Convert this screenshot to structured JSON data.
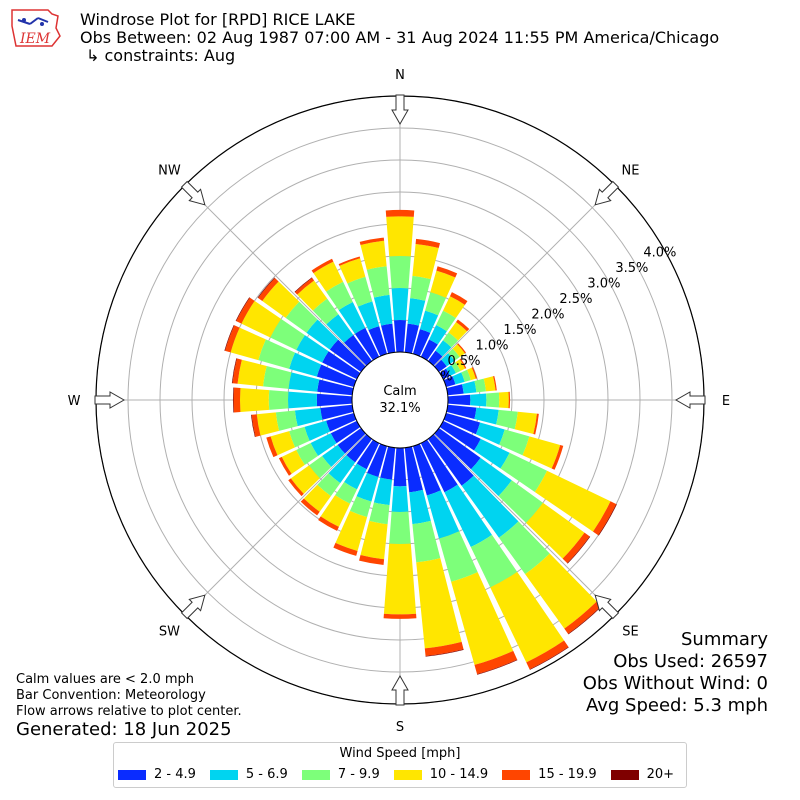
{
  "header": {
    "title": "Windrose Plot for [RPD] RICE LAKE",
    "obs_between": "Obs Between: 02 Aug 1987 07:00 AM - 31 Aug 2024 11:55 PM America/Chicago",
    "constraints": "↳ constraints: Aug",
    "logo_text": "IEM"
  },
  "notes": {
    "calm_def": "Calm values are < 2.0 mph",
    "bar_convention": "Bar Convention: Meteorology",
    "flow_arrows": "Flow arrows relative to plot center.",
    "generated": "Generated: 18 Jun 2025"
  },
  "summary": {
    "title": "Summary",
    "obs_used": "Obs Used: 26597",
    "obs_without_wind": "Obs Without Wind: 0",
    "avg_speed": "Avg Speed: 5.3 mph"
  },
  "legend": {
    "title": "Wind Speed [mph]",
    "items": [
      {
        "label": "2 - 4.9",
        "color": "#0a2cff"
      },
      {
        "label": "5 - 6.9",
        "color": "#00d4f0"
      },
      {
        "label": "7 - 9.9",
        "color": "#7dff7a"
      },
      {
        "label": "10 - 14.9",
        "color": "#ffe600"
      },
      {
        "label": "15 - 19.9",
        "color": "#ff4500"
      },
      {
        "label": "20+",
        "color": "#7f0000"
      }
    ]
  },
  "chart_data": {
    "type": "windrose",
    "calm_label": "Calm",
    "calm_value": "32.1%",
    "compass_labels": [
      {
        "label": "N",
        "bearing": 0
      },
      {
        "label": "NE",
        "bearing": 45
      },
      {
        "label": "E",
        "bearing": 90
      },
      {
        "label": "SE",
        "bearing": 135
      },
      {
        "label": "S",
        "bearing": 180
      },
      {
        "label": "SW",
        "bearing": 225
      },
      {
        "label": "W",
        "bearing": 270
      },
      {
        "label": "NW",
        "bearing": 315
      }
    ],
    "radial_ticks": [
      "0.0%",
      "0.5%",
      "1.0%",
      "1.5%",
      "2.0%",
      "2.5%",
      "3.0%",
      "3.5%",
      "4.0%"
    ],
    "rlim": [
      0,
      4.0
    ],
    "grid": true,
    "speed_bins": [
      "2 - 4.9",
      "5 - 6.9",
      "7 - 9.9",
      "10 - 14.9",
      "15 - 19.9",
      "20+"
    ],
    "bins_colors": [
      "#0a2cff",
      "#00d4f0",
      "#7dff7a",
      "#ffe600",
      "#ff4500",
      "#7f0000"
    ],
    "directions_deg": [
      0,
      10,
      20,
      30,
      40,
      50,
      60,
      70,
      80,
      90,
      100,
      110,
      120,
      130,
      140,
      150,
      160,
      170,
      180,
      190,
      200,
      210,
      220,
      230,
      240,
      250,
      260,
      270,
      280,
      290,
      300,
      310,
      320,
      330,
      340,
      350
    ],
    "cumulative_percent": [
      [
        0.5,
        1.0,
        1.5,
        2.12,
        2.22,
        2.22
      ],
      [
        0.45,
        0.85,
        1.2,
        1.7,
        1.78,
        1.78
      ],
      [
        0.4,
        0.7,
        1.0,
        1.35,
        1.42,
        1.42
      ],
      [
        0.3,
        0.55,
        0.8,
        1.05,
        1.12,
        1.12
      ],
      [
        0.2,
        0.4,
        0.55,
        0.75,
        0.8,
        0.8
      ],
      [
        0.15,
        0.3,
        0.4,
        0.5,
        0.52,
        0.52
      ],
      [
        0.12,
        0.22,
        0.3,
        0.38,
        0.4,
        0.4
      ],
      [
        0.15,
        0.3,
        0.4,
        0.48,
        0.5,
        0.5
      ],
      [
        0.25,
        0.45,
        0.6,
        0.75,
        0.77,
        0.77
      ],
      [
        0.35,
        0.6,
        0.8,
        0.95,
        0.97,
        0.97
      ],
      [
        0.45,
        0.8,
        1.1,
        1.4,
        1.43,
        1.43
      ],
      [
        0.55,
        0.95,
        1.35,
        1.85,
        1.9,
        1.9
      ],
      [
        0.65,
        1.15,
        1.8,
        2.9,
        3.0,
        3.01
      ],
      [
        0.8,
        1.4,
        2.0,
        2.8,
        2.9,
        2.91
      ],
      [
        0.9,
        1.9,
        2.6,
        3.65,
        3.75,
        3.76
      ],
      [
        0.85,
        1.8,
        2.5,
        3.8,
        3.92,
        3.93
      ],
      [
        0.8,
        1.5,
        2.2,
        3.55,
        3.7,
        3.71
      ],
      [
        0.7,
        1.2,
        1.8,
        3.15,
        3.27,
        3.28
      ],
      [
        0.6,
        1.0,
        1.5,
        2.6,
        2.67,
        2.67
      ],
      [
        0.5,
        0.9,
        1.2,
        1.75,
        1.84,
        1.84
      ],
      [
        0.5,
        0.9,
        1.15,
        1.7,
        1.78,
        1.78
      ],
      [
        0.45,
        0.8,
        1.05,
        1.45,
        1.52,
        1.52
      ],
      [
        0.45,
        0.85,
        1.1,
        1.4,
        1.47,
        1.47
      ],
      [
        0.45,
        0.75,
        1.0,
        1.35,
        1.4,
        1.4
      ],
      [
        0.45,
        0.8,
        1.05,
        1.3,
        1.35,
        1.35
      ],
      [
        0.45,
        0.8,
        1.05,
        1.35,
        1.42,
        1.42
      ],
      [
        0.5,
        0.9,
        1.2,
        1.5,
        1.58,
        1.59
      ],
      [
        0.55,
        1.0,
        1.3,
        1.75,
        1.85,
        1.86
      ],
      [
        0.55,
        1.0,
        1.4,
        1.8,
        1.88,
        1.89
      ],
      [
        0.6,
        1.05,
        1.55,
        2.0,
        2.09,
        2.1
      ],
      [
        0.6,
        1.05,
        1.5,
        2.0,
        2.09,
        2.1
      ],
      [
        0.6,
        1.05,
        1.45,
        1.9,
        1.98,
        1.99
      ],
      [
        0.5,
        0.9,
        1.2,
        1.55,
        1.6,
        1.61
      ],
      [
        0.5,
        0.95,
        1.3,
        1.65,
        1.7,
        1.7
      ],
      [
        0.45,
        0.85,
        1.25,
        1.55,
        1.58,
        1.58
      ],
      [
        0.45,
        0.9,
        1.35,
        1.75,
        1.8,
        1.8
      ]
    ]
  }
}
